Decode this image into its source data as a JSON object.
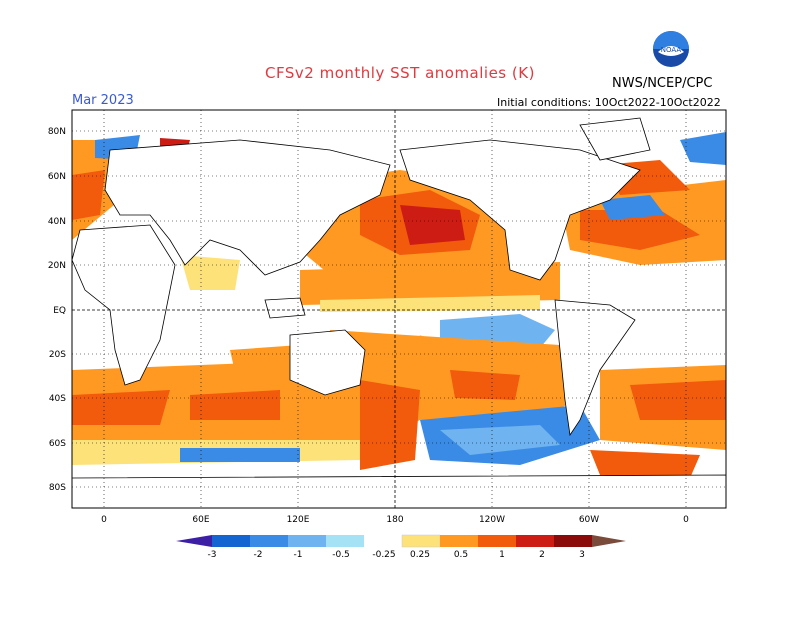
{
  "header": {
    "title": "CFSv2 monthly SST anomalies (K)",
    "month": "Mar 2023",
    "agency": "NWS/NCEP/CPC",
    "initial_conditions": "Initial conditions: 10Oct2022-10Oct2022",
    "logo_text": "NOAA"
  },
  "map": {
    "lat_labels": [
      "80N",
      "60N",
      "40N",
      "20N",
      "EQ",
      "20S",
      "40S",
      "60S",
      "80S"
    ],
    "lon_labels": [
      "0",
      "60E",
      "120E",
      "180",
      "120W",
      "60W",
      "0"
    ]
  },
  "colorbar": {
    "labels": [
      "-3",
      "-2",
      "-1",
      "-0.5",
      "-0.25",
      "0.25",
      "0.5",
      "1",
      "2",
      "3"
    ],
    "colors": [
      "#3d1fa6",
      "#1464d2",
      "#3a8be6",
      "#6fb4f0",
      "#a6e2f5",
      "#ffffff",
      "#fde27a",
      "#ff9922",
      "#f25a0c",
      "#cd1c14",
      "#8b0a0a",
      "#7a4a3a"
    ]
  }
}
